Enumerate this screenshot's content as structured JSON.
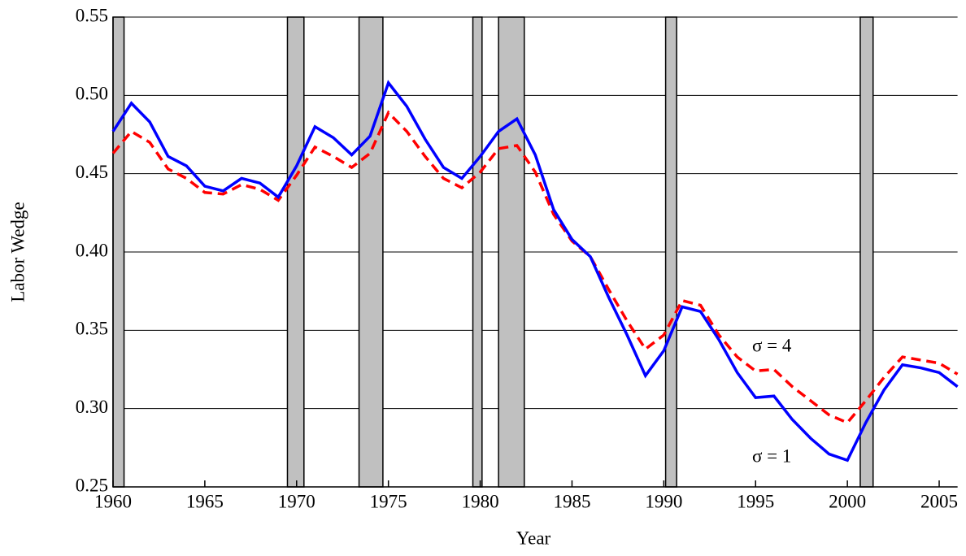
{
  "chart_data": {
    "type": "line",
    "x_label": "Year",
    "y_label": "Labor Wedge",
    "x": [
      1960,
      1961,
      1962,
      1963,
      1964,
      1965,
      1966,
      1967,
      1968,
      1969,
      1970,
      1971,
      1972,
      1973,
      1974,
      1975,
      1976,
      1977,
      1978,
      1979,
      1980,
      1981,
      1982,
      1983,
      1984,
      1985,
      1986,
      1987,
      1988,
      1989,
      1990,
      1991,
      1992,
      1993,
      1994,
      1995,
      1996,
      1997,
      1998,
      1999,
      2000,
      2001,
      2002,
      2003,
      2004,
      2005,
      2006
    ],
    "series": [
      {
        "name": "σ = 1",
        "color": "#0000ff",
        "dashed": false,
        "values": [
          0.477,
          0.495,
          0.483,
          0.461,
          0.455,
          0.442,
          0.439,
          0.447,
          0.444,
          0.435,
          0.455,
          0.48,
          0.473,
          0.462,
          0.474,
          0.508,
          0.493,
          0.472,
          0.454,
          0.447,
          0.461,
          0.477,
          0.485,
          0.462,
          0.427,
          0.408,
          0.397,
          0.371,
          0.347,
          0.321,
          0.337,
          0.365,
          0.362,
          0.344,
          0.323,
          0.307,
          0.308,
          0.293,
          0.281,
          0.271,
          0.267,
          0.291,
          0.312,
          0.328,
          0.326,
          0.323,
          0.314
        ]
      },
      {
        "name": "σ = 4",
        "color": "#ff0000",
        "dashed": true,
        "values": [
          0.463,
          0.477,
          0.47,
          0.453,
          0.447,
          0.438,
          0.437,
          0.443,
          0.44,
          0.433,
          0.449,
          0.467,
          0.461,
          0.454,
          0.463,
          0.489,
          0.477,
          0.461,
          0.447,
          0.441,
          0.451,
          0.466,
          0.468,
          0.451,
          0.424,
          0.407,
          0.397,
          0.376,
          0.356,
          0.338,
          0.347,
          0.369,
          0.366,
          0.347,
          0.333,
          0.324,
          0.325,
          0.314,
          0.305,
          0.296,
          0.291,
          0.305,
          0.32,
          0.333,
          0.331,
          0.329,
          0.322
        ]
      }
    ],
    "shaded_periods": [
      [
        1960.0,
        1960.6
      ],
      [
        1969.5,
        1970.4
      ],
      [
        1973.4,
        1974.7
      ],
      [
        1979.6,
        1980.1
      ],
      [
        1981.0,
        1982.4
      ],
      [
        1990.1,
        1990.7
      ],
      [
        2000.7,
        2001.4
      ]
    ],
    "shade_color": "#c0c0c0",
    "xlim": [
      1960,
      2006
    ],
    "xticks": [
      1960,
      1965,
      1970,
      1975,
      1980,
      1985,
      1990,
      1995,
      2000,
      2005
    ],
    "ylim": [
      0.25,
      0.55
    ],
    "yticks": [
      0.25,
      {
        "value": 0.3,
        "label": "0.30"
      },
      0.35,
      {
        "value": 0.4,
        "label": "0.40"
      },
      0.45,
      {
        "value": 0.5,
        "label": "0.50"
      },
      0.55
    ],
    "grid": true
  }
}
